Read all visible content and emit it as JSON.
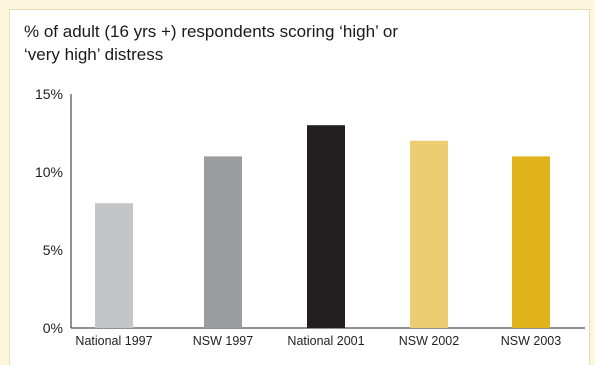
{
  "chart_data": {
    "type": "bar",
    "title_lines": [
      "% of adult (16 yrs +) respondents scoring ‘high’ or",
      "‘very high’ distress"
    ],
    "categories": [
      "National 1997",
      "NSW 1997",
      "National 2001",
      "NSW 2002",
      "NSW 2003"
    ],
    "values": [
      8,
      11,
      13,
      12,
      11
    ],
    "colors": [
      "#c4c5c7",
      "#9b9c9e",
      "#231f20",
      "#ecce72",
      "#e0b31a"
    ],
    "y_ticks": [
      "0%",
      "5%",
      "10%",
      "15%"
    ],
    "ylim": [
      0,
      15
    ],
    "grid": false,
    "legend": "none"
  },
  "colors": {
    "background": "#fdf6dc",
    "panel": "#ffffff",
    "axis": "#222222"
  }
}
